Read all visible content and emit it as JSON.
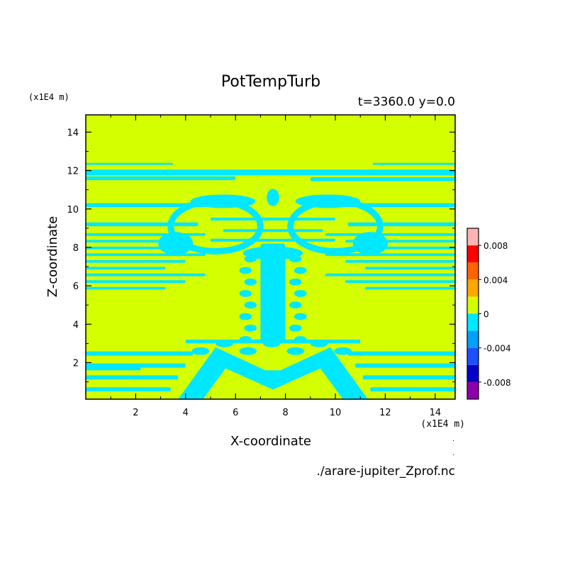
{
  "chart_data": {
    "type": "heatmap",
    "title": "PotTempTurb",
    "subtitle": "t=3360.0  y=0.0",
    "xlabel": "X-coordinate",
    "ylabel": "Z-coordinate",
    "x_unit": "(x1E4 m)",
    "y_unit": "(x1E4 m)",
    "xlim": [
      0,
      14.8
    ],
    "ylim": [
      0.1,
      14.9
    ],
    "x_ticks": [
      2,
      4,
      6,
      8,
      10,
      12,
      14
    ],
    "y_ticks": [
      2,
      4,
      6,
      8,
      10,
      12,
      14
    ],
    "source_file": "./arare-jupiter_Zprof.nc",
    "colorbar": {
      "levels": [
        -0.01,
        -0.008,
        -0.006,
        -0.004,
        -0.002,
        0.0,
        0.002,
        0.004,
        0.006,
        0.008,
        0.01
      ],
      "colors": [
        "#8b00a8",
        "#0000c8",
        "#1e50ff",
        "#00a0ff",
        "#00e8ff",
        "#d4ff00",
        "#ffa800",
        "#ff6400",
        "#ff0000",
        "#ffb4b4"
      ],
      "tick_values": [
        0.008,
        0.004,
        0,
        -0.004,
        -0.008
      ],
      "tick_labels": [
        "0.008",
        "0.004",
        "0",
        "-0.004",
        "-0.008"
      ]
    },
    "background_level_color": "#d4ff00",
    "anomaly_color": "#00e8ff",
    "features": [
      {
        "name": "upper band",
        "z": [
          11.7,
          12.1
        ],
        "x": [
          0,
          14.8
        ]
      },
      {
        "name": "mushroom cap",
        "z": [
          7.5,
          10.5
        ],
        "x": [
          3.0,
          11.5
        ]
      },
      {
        "name": "central stem",
        "z": [
          2.5,
          8.5
        ],
        "x": [
          6.8,
          8.4
        ]
      },
      {
        "name": "side streaks left",
        "z": [
          5.5,
          8.5
        ],
        "x": [
          0,
          5.5
        ]
      },
      {
        "name": "side streaks right",
        "z": [
          5.5,
          8.5
        ],
        "x": [
          10,
          14.8
        ]
      },
      {
        "name": "base plume",
        "z": [
          0.1,
          3.5
        ],
        "x": [
          3.5,
          11.5
        ]
      },
      {
        "name": "lower bands",
        "z": [
          0.3,
          3.0
        ],
        "x": [
          0,
          14.8
        ]
      }
    ]
  }
}
